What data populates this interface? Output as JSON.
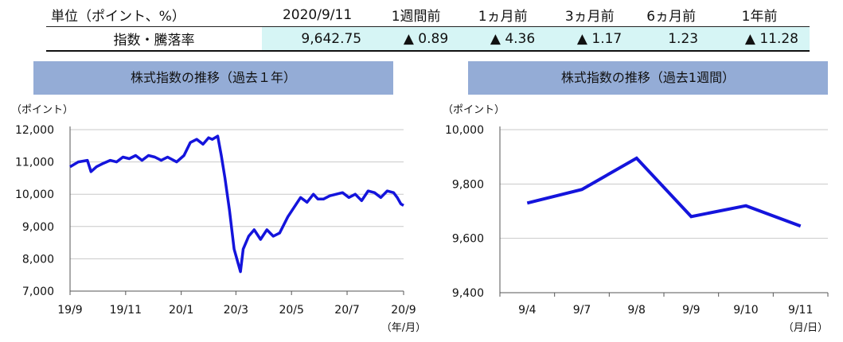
{
  "summary_table": {
    "headers": [
      "単位（ポイント、%）",
      "2020/9/11",
      "1週間前",
      "1ヵ月前",
      "3ヵ月前",
      "6ヵ月前",
      "1年前"
    ],
    "row_label": "指数・騰落率",
    "values": [
      "9,642.75",
      "▲ 0.89",
      "▲ 4.36",
      "▲ 1.17",
      "1.23",
      "▲ 11.28"
    ]
  },
  "colors": {
    "line": "#1414dc",
    "title_bg": "#94acd6",
    "highlight": "#d6f5f5"
  },
  "chart_data": [
    {
      "type": "line",
      "title": "株式指数の推移（過去１年）",
      "ylabel": "（ポイント）",
      "xlabel": "（年/月）",
      "ylim": [
        7000,
        12000
      ],
      "yticks": [
        "7,000",
        "8,000",
        "9,000",
        "10,000",
        "11,000",
        "12,000"
      ],
      "ytick_values": [
        7000,
        8000,
        9000,
        10000,
        11000,
        12000
      ],
      "xticks": [
        "19/9",
        "19/11",
        "20/1",
        "20/3",
        "20/5",
        "20/7",
        "20/9"
      ],
      "x_range": [
        "2019-09-11",
        "2020-09-11"
      ],
      "gridlines": true,
      "series": [
        {
          "x": [
            "2019-09-11",
            "2019-09-20",
            "2019-09-30",
            "2019-10-04",
            "2019-10-10",
            "2019-10-17",
            "2019-10-25",
            "2019-11-01",
            "2019-11-08",
            "2019-11-15",
            "2019-11-22",
            "2019-11-29",
            "2019-12-06",
            "2019-12-13",
            "2019-12-20",
            "2019-12-27",
            "2020-01-06",
            "2020-01-14",
            "2020-01-21",
            "2020-01-28",
            "2020-02-04",
            "2020-02-10",
            "2020-02-14",
            "2020-02-20",
            "2020-02-24",
            "2020-02-28",
            "2020-03-04",
            "2020-03-09",
            "2020-03-12",
            "2020-03-16",
            "2020-03-19",
            "2020-03-25",
            "2020-03-31",
            "2020-04-07",
            "2020-04-14",
            "2020-04-21",
            "2020-04-28",
            "2020-05-07",
            "2020-05-14",
            "2020-05-21",
            "2020-05-28",
            "2020-06-04",
            "2020-06-09",
            "2020-06-15",
            "2020-06-22",
            "2020-06-29",
            "2020-07-06",
            "2020-07-13",
            "2020-07-20",
            "2020-07-27",
            "2020-08-03",
            "2020-08-10",
            "2020-08-17",
            "2020-08-24",
            "2020-08-31",
            "2020-09-04",
            "2020-09-08",
            "2020-09-11"
          ],
          "values": [
            10850,
            11000,
            11050,
            10700,
            10850,
            10950,
            11050,
            11000,
            11150,
            11100,
            11200,
            11050,
            11200,
            11150,
            11050,
            11150,
            11000,
            11200,
            11600,
            11700,
            11550,
            11750,
            11700,
            11800,
            11200,
            10500,
            9500,
            8300,
            8000,
            7600,
            8300,
            8700,
            8900,
            8600,
            8900,
            8700,
            8800,
            9300,
            9600,
            9900,
            9750,
            10000,
            9850,
            9850,
            9950,
            10000,
            10050,
            9900,
            10000,
            9800,
            10100,
            10050,
            9900,
            10100,
            10050,
            9900,
            9700,
            9650
          ]
        }
      ]
    },
    {
      "type": "line",
      "title": "株式指数の推移（過去1週間）",
      "ylabel": "（ポイント）",
      "xlabel": "（月/日）",
      "ylim": [
        9400,
        10000
      ],
      "yticks": [
        "9,400",
        "9,600",
        "9,800",
        "10,000"
      ],
      "ytick_values": [
        9400,
        9600,
        9800,
        10000
      ],
      "categories": [
        "9/4",
        "9/7",
        "9/8",
        "9/9",
        "9/10",
        "9/11"
      ],
      "gridlines": true,
      "series": [
        {
          "values": [
            9730,
            9780,
            9895,
            9680,
            9720,
            9645
          ]
        }
      ]
    }
  ]
}
